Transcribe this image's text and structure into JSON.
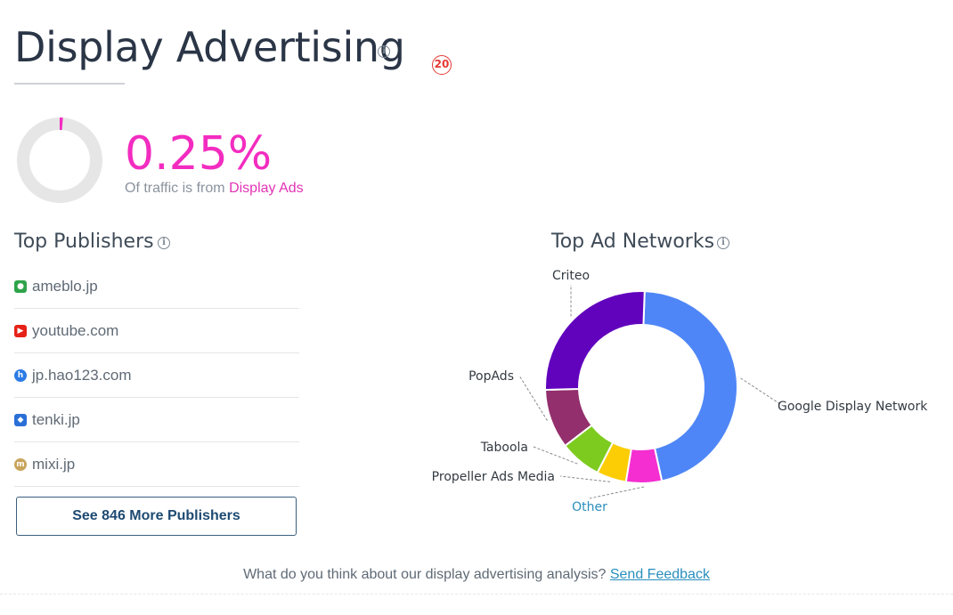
{
  "header": {
    "title": "Display Advertising",
    "info_icon": "i",
    "badge": "⑳"
  },
  "summary": {
    "percent_text": "0.25%",
    "percent_value": 0.25,
    "caption_prefix": "Of traffic is from ",
    "caption_highlight": "Display Ads"
  },
  "publishers": {
    "title": "Top Publishers",
    "items": [
      {
        "name": "ameblo.jp",
        "icon": "ameblo-icon",
        "color": "#2fa34a"
      },
      {
        "name": "youtube.com",
        "icon": "youtube-icon",
        "color": "#e62117"
      },
      {
        "name": "jp.hao123.com",
        "icon": "hao123-icon",
        "color": "#2c7be5"
      },
      {
        "name": "tenki.jp",
        "icon": "tenki-icon",
        "color": "#2a6fd6"
      },
      {
        "name": "mixi.jp",
        "icon": "mixi-icon",
        "color": "#c8a45a"
      }
    ],
    "more_button": "See 846 More Publishers"
  },
  "networks": {
    "title": "Top Ad Networks"
  },
  "chart_data": {
    "type": "pie",
    "donut": true,
    "categories": [
      "Google Display Network",
      "Other",
      "Propeller Ads Media",
      "Taboola",
      "PopAds",
      "Criteo"
    ],
    "values": [
      0.46,
      0.06,
      0.05,
      0.07,
      0.1,
      0.26
    ],
    "colors": [
      "#4f86f7",
      "#f42ed0",
      "#fccd04",
      "#7ecb20",
      "#932f6d",
      "#6103bd"
    ],
    "legend": "labels-outside"
  },
  "feedback": {
    "text": "What do you think about our display advertising analysis? ",
    "link": "Send Feedback"
  }
}
